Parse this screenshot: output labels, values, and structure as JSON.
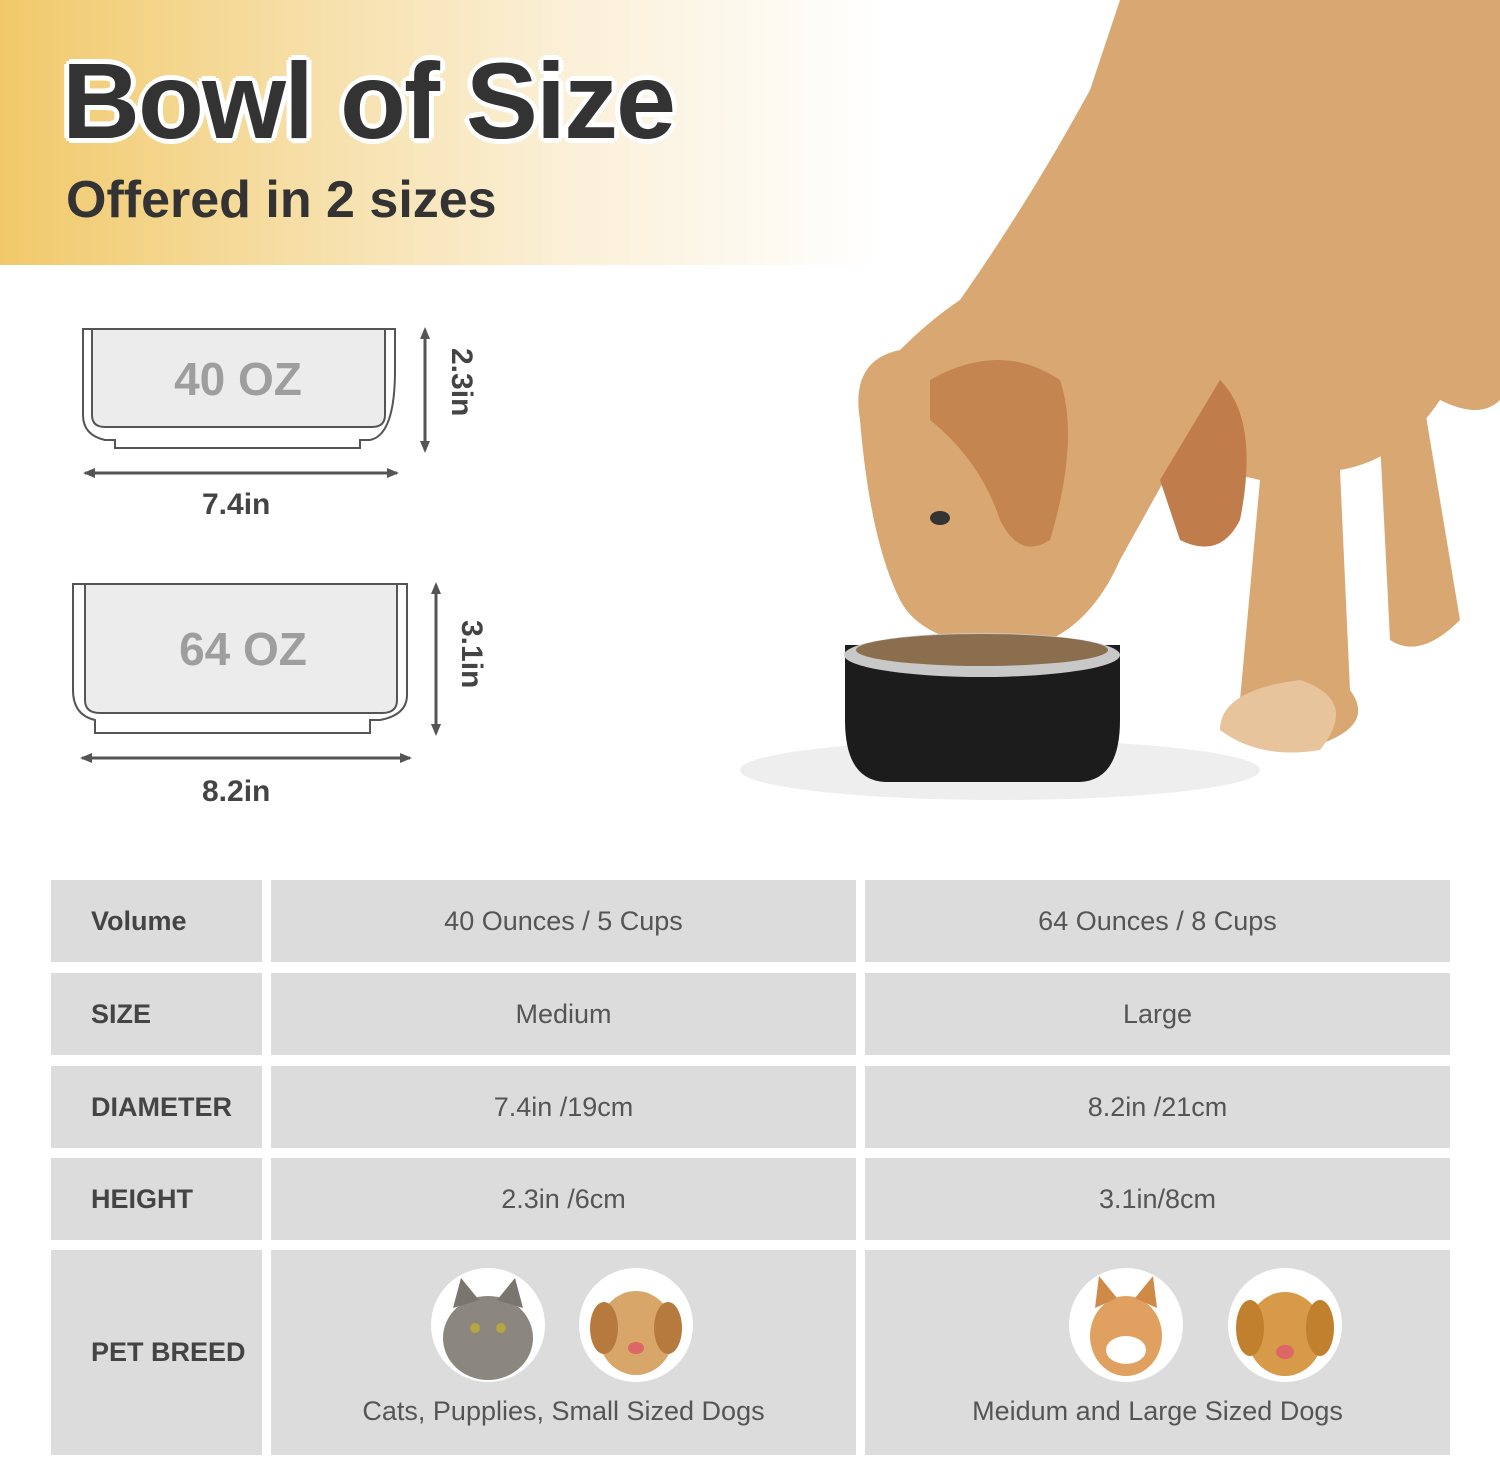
{
  "header": {
    "title": "Bowl of Size",
    "subtitle": "Offered in 2 sizes"
  },
  "diagrams": [
    {
      "capacity": "40 OZ",
      "width": "7.4in",
      "height": "2.3in"
    },
    {
      "capacity": "64 OZ",
      "width": "8.2in",
      "height": "3.1in"
    }
  ],
  "table": {
    "rows": [
      {
        "label": "Volume",
        "values": [
          "40 Ounces / 5 Cups",
          "64 Ounces / 8 Cups"
        ]
      },
      {
        "label": "SIZE",
        "values": [
          "Medium",
          "Large"
        ]
      },
      {
        "label": "DIAMETER",
        "values": [
          "7.4in /19cm",
          "8.2in /21cm"
        ]
      },
      {
        "label": "HEIGHT",
        "values": [
          "2.3in /6cm",
          "3.1in/8cm"
        ]
      },
      {
        "label": "PET BREED",
        "values": [
          "Cats, Pupplies, Small Sized Dogs",
          "Meidum and Large Sized Dogs"
        ]
      }
    ]
  },
  "colors": {
    "banner": "#f1c96a",
    "cell": "#dcdcdc",
    "text": "#333333",
    "bowl": "#1c1c1c"
  }
}
